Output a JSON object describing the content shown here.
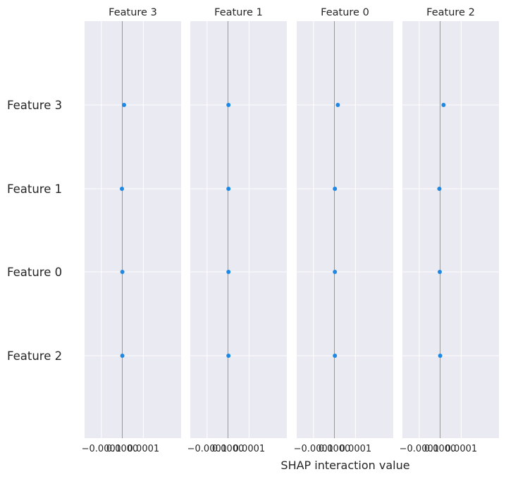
{
  "chart_data": {
    "type": "scatter",
    "xlabel": "SHAP interaction value",
    "row_features": [
      "Feature 3",
      "Feature 1",
      "Feature 0",
      "Feature 2"
    ],
    "panels": [
      {
        "title": "Feature 3",
        "xlim": [
          -9e-05,
          0.00014
        ],
        "xticks": [
          -5e-05,
          0.0,
          5e-05
        ],
        "xticklabels": [
          "−0.0001",
          "0.0000",
          "0.0001"
        ],
        "points": [
          {
            "feature": "Feature 3",
            "value": 4e-06
          },
          {
            "feature": "Feature 1",
            "value": -1e-06
          },
          {
            "feature": "Feature 0",
            "value": 0.0
          },
          {
            "feature": "Feature 2",
            "value": 0.0
          }
        ]
      },
      {
        "title": "Feature 1",
        "xlim": [
          -9e-05,
          0.00014
        ],
        "xticks": [
          -5e-05,
          0.0,
          5e-05
        ],
        "xticklabels": [
          "−0.0001",
          "0.0000",
          "0.0001"
        ],
        "points": [
          {
            "feature": "Feature 3",
            "value": 1e-06
          },
          {
            "feature": "Feature 1",
            "value": 1e-06
          },
          {
            "feature": "Feature 0",
            "value": 1e-06
          },
          {
            "feature": "Feature 2",
            "value": 1e-06
          }
        ]
      },
      {
        "title": "Feature 0",
        "xlim": [
          -9e-05,
          0.00014
        ],
        "xticks": [
          -5e-05,
          0.0,
          5e-05
        ],
        "xticklabels": [
          "−0.0001",
          "0.0000",
          "0.0001"
        ],
        "points": [
          {
            "feature": "Feature 3",
            "value": 8e-06
          },
          {
            "feature": "Feature 1",
            "value": 1e-06
          },
          {
            "feature": "Feature 0",
            "value": 1e-06
          },
          {
            "feature": "Feature 2",
            "value": 1e-06
          }
        ]
      },
      {
        "title": "Feature 2",
        "xlim": [
          -9e-05,
          0.00014
        ],
        "xticks": [
          -5e-05,
          0.0,
          5e-05
        ],
        "xticklabels": [
          "−0.0001",
          "0.0000",
          "0.0001"
        ],
        "points": [
          {
            "feature": "Feature 3",
            "value": 8e-06
          },
          {
            "feature": "Feature 1",
            "value": -2e-06
          },
          {
            "feature": "Feature 0",
            "value": -1e-06
          },
          {
            "feature": "Feature 2",
            "value": 0.0
          }
        ]
      }
    ],
    "grid": true,
    "colors": {
      "point": "#1e88e5",
      "panel_background": "#eaeaf2",
      "grid": "#ffffff",
      "zero_line": "#7f7f7f"
    }
  }
}
